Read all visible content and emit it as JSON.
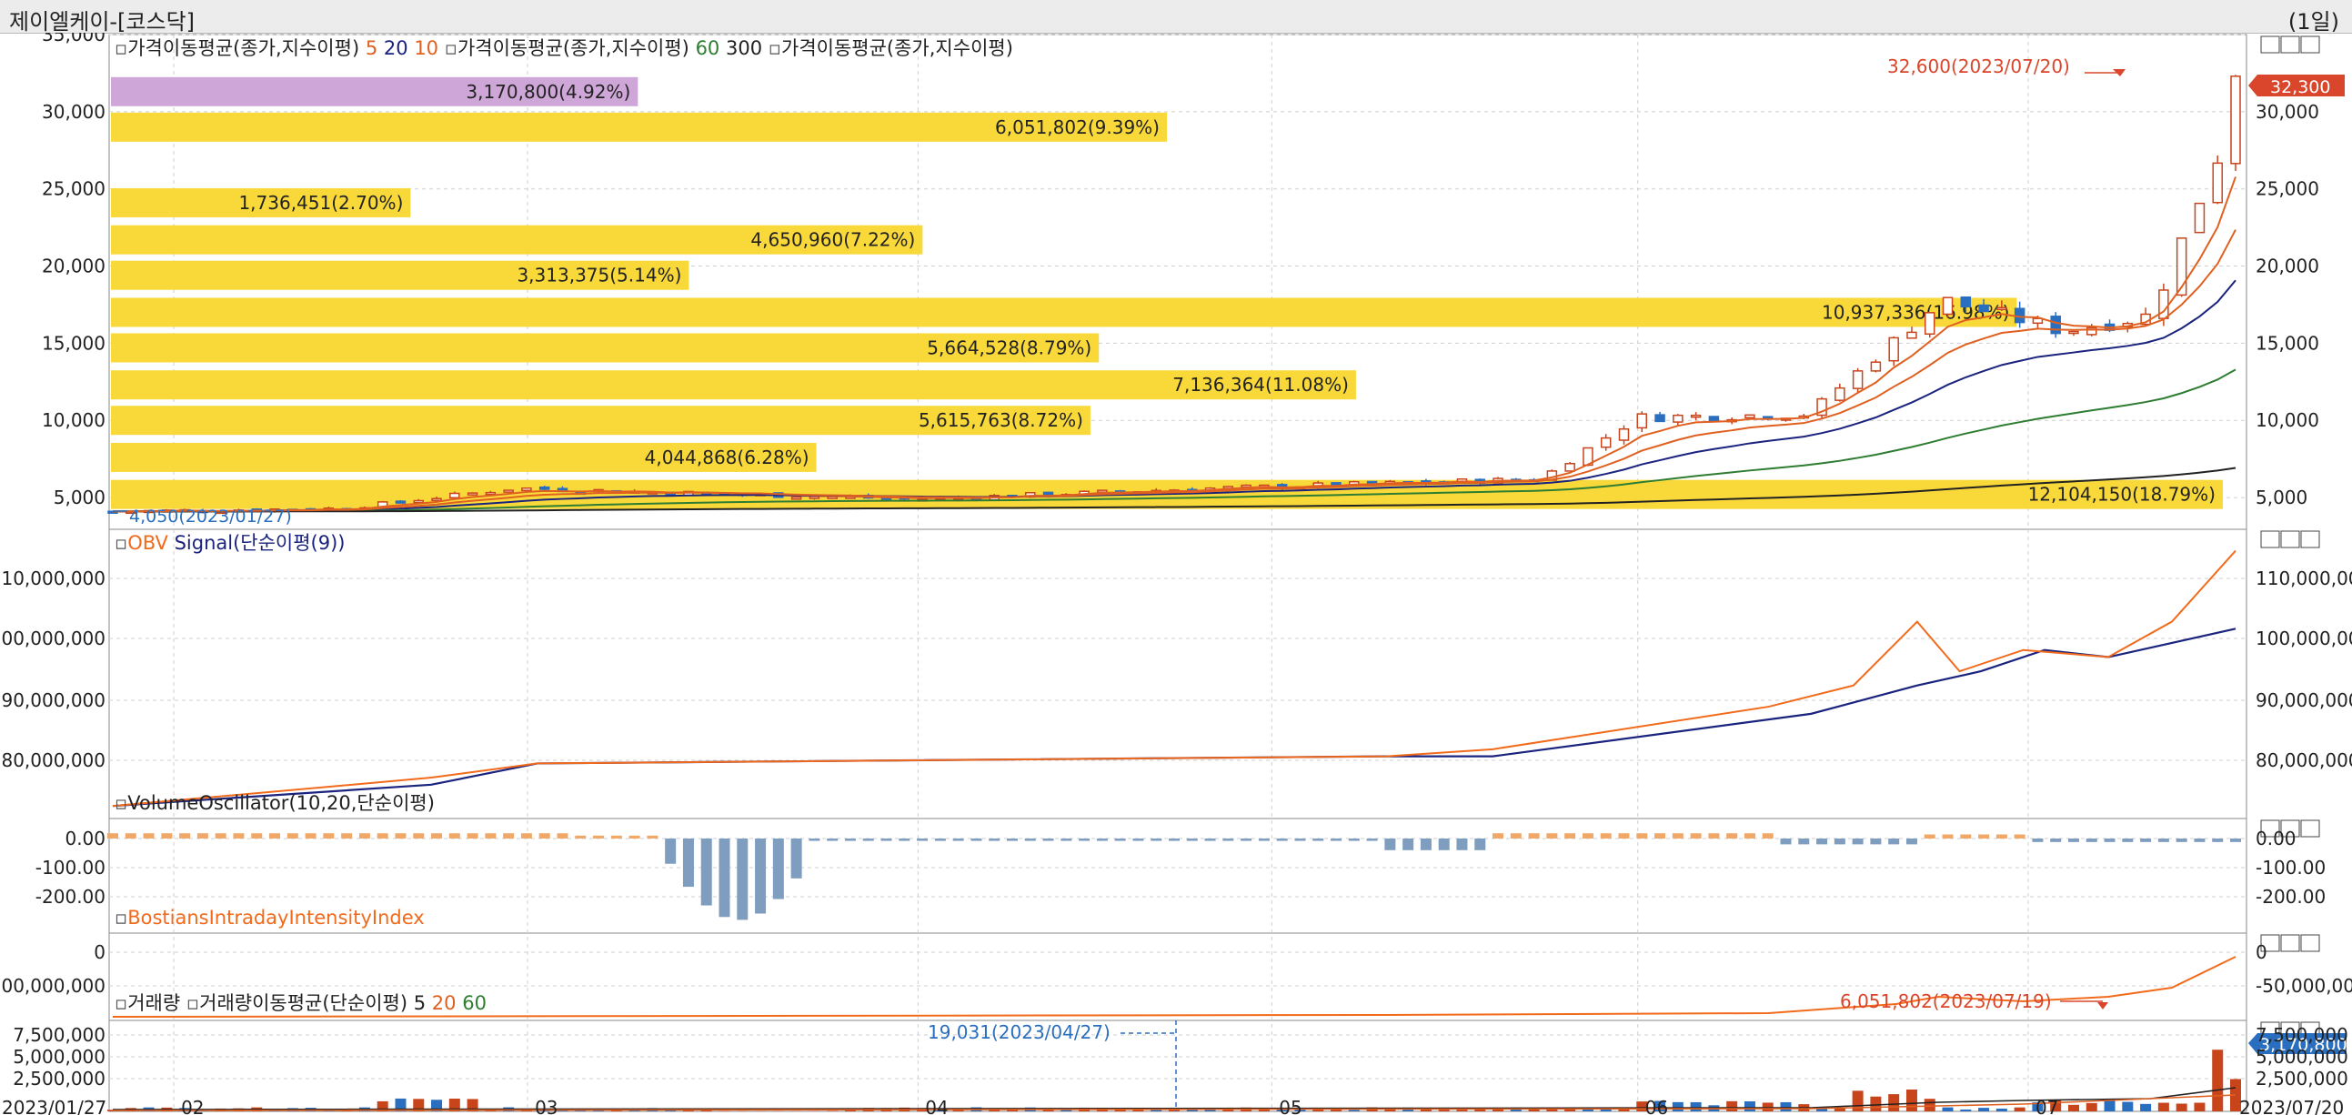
{
  "window": {
    "title": "제이엘케이-[코스닥]",
    "period": "(1일)"
  },
  "colors": {
    "up": "#c8441b",
    "down": "#2a6fbf",
    "ma5": "#e06020",
    "ma20": "#1a237e",
    "ma60": "#2e7d32",
    "ma300": "#222222",
    "vp_bar": "#f9d93a",
    "vp_current": "#cfa6d8",
    "obv": "#f26a1b",
    "signal": "#1a237e",
    "vo_pos": "#f0a868",
    "vo_neg": "#7f9dbf",
    "bii": "#f26a1b",
    "vol_up": "#c8441b",
    "vol_down": "#2a6fbf",
    "callout": "#d9462b",
    "grid": "#cfcfcf"
  },
  "price_panel": {
    "legend": {
      "ma_label_1": "가격이동평균(종가,지수이평)",
      "p5": "5",
      "p20": "20",
      "p10": "10",
      "ma_label_2": "가격이동평균(종가,지수이평)",
      "p60": "60",
      "p300": "300",
      "ma_label_3": "가격이동평균(종가,지수이평)"
    },
    "high_callout": "32,600(2023/07/20)",
    "low_callout": "4,050(2023/01/27)",
    "current_price": "32,300",
    "yaxis_left": [
      "35,000",
      "30,000",
      "25,000",
      "20,000",
      "15,000",
      "10,000",
      "5,000"
    ],
    "yaxis_right": [
      "30,000",
      "25,000",
      "20,000",
      "15,000",
      "10,000",
      "5,000"
    ],
    "volume_profile": [
      {
        "label": "3,170,800(4.92%)",
        "fraction": 0.248,
        "price_center": 31300,
        "current": true
      },
      {
        "label": "6,051,802(9.39%)",
        "fraction": 0.497,
        "price_center": 29000
      },
      {
        "label": "1,736,451(2.70%)",
        "fraction": 0.141,
        "price_center": 24100
      },
      {
        "label": "4,650,960(7.22%)",
        "fraction": 0.382,
        "price_center": 21700
      },
      {
        "label": "3,313,375(5.14%)",
        "fraction": 0.272,
        "price_center": 19400
      },
      {
        "label": "10,937,336(16.98%)",
        "fraction": 0.897,
        "price_center": 17000
      },
      {
        "label": "5,664,528(8.79%)",
        "fraction": 0.465,
        "price_center": 14700
      },
      {
        "label": "7,136,364(11.08%)",
        "fraction": 0.586,
        "price_center": 12300
      },
      {
        "label": "5,615,763(8.72%)",
        "fraction": 0.461,
        "price_center": 10000
      },
      {
        "label": "4,044,868(6.28%)",
        "fraction": 0.332,
        "price_center": 7600
      },
      {
        "label": "12,104,150(18.79%)",
        "fraction": 0.994,
        "price_center": 5200
      }
    ]
  },
  "obv_panel": {
    "legend": {
      "obv": "OBV",
      "signal": "Signal(단순이평(9))"
    },
    "yaxis_left": [
      "10,000,000",
      "00,000,000",
      "90,000,000",
      "80,000,000"
    ],
    "yaxis_right": [
      "110,000,000",
      "100,000,000",
      "90,000,000",
      "80,000,000"
    ]
  },
  "vo_panel": {
    "legend": "VolumeOscillator(10,20,단순이평)",
    "yaxis_left": [
      "0.00",
      "-100.00",
      "-200.00"
    ],
    "yaxis_right": [
      "0.00",
      "-100.00",
      "-200.00"
    ]
  },
  "bii_panel": {
    "legend": "BostiansIntradayIntensityIndex",
    "yaxis_left": [
      "0",
      "00,000,000"
    ],
    "yaxis_right": [
      "0",
      "-50,000,000"
    ]
  },
  "vol_panel": {
    "legend": {
      "vol": "거래량",
      "ma": "거래량이동평균(단순이평)",
      "p5": "5",
      "p20": "20",
      "p60": "60"
    },
    "high_callout": "6,051,802(2023/07/19)",
    "low_callout": "19,031(2023/04/27)",
    "current_volume": "3,170,800",
    "yaxis_left": [
      "7,500,000",
      "5,000,000",
      "2,500,000"
    ],
    "yaxis_right": [
      "7,500,000",
      "5,000,000",
      "2,500,000"
    ]
  },
  "xaxis": {
    "start": "2023/01/27",
    "end": "2023/07/20",
    "months": [
      "02",
      "03",
      "04",
      "05",
      "06",
      "07"
    ]
  },
  "chart_data": {
    "type": "candlestick",
    "x_range": [
      "2023/01/27",
      "2023/07/20"
    ],
    "price_ylim": [
      3000,
      35000
    ],
    "keypoints": [
      {
        "date": "2023/01/27",
        "close": 4100
      },
      {
        "date": "2023/02/15",
        "close": 4300
      },
      {
        "date": "2023/03/01",
        "close": 5600
      },
      {
        "date": "2023/04/03",
        "close": 4900
      },
      {
        "date": "2023/04/27",
        "close": 5600
      },
      {
        "date": "2023/05/24",
        "close": 6200
      },
      {
        "date": "2023/06/01",
        "close": 10200
      },
      {
        "date": "2023/06/15",
        "close": 10400
      },
      {
        "date": "2023/06/26",
        "close": 17800
      },
      {
        "date": "2023/07/06",
        "close": 15800
      },
      {
        "date": "2023/07/13",
        "close": 16800
      },
      {
        "date": "2023/07/19",
        "close": 28000
      },
      {
        "date": "2023/07/20",
        "close": 32300
      }
    ],
    "series": [
      {
        "name": "OBV",
        "points": [
          [
            0,
            79
          ],
          [
            0.15,
            83
          ],
          [
            0.2,
            85
          ],
          [
            0.6,
            86
          ],
          [
            0.65,
            87
          ],
          [
            0.78,
            93
          ],
          [
            0.82,
            96
          ],
          [
            0.85,
            105
          ],
          [
            0.87,
            98
          ],
          [
            0.9,
            101
          ],
          [
            0.94,
            100
          ],
          [
            0.97,
            105
          ],
          [
            1.0,
            115
          ]
        ]
      },
      {
        "name": "Signal",
        "points": [
          [
            0,
            79
          ],
          [
            0.15,
            82
          ],
          [
            0.2,
            85
          ],
          [
            0.6,
            86
          ],
          [
            0.65,
            86
          ],
          [
            0.8,
            92
          ],
          [
            0.85,
            96
          ],
          [
            0.88,
            98
          ],
          [
            0.91,
            101
          ],
          [
            0.94,
            100
          ],
          [
            0.97,
            102
          ],
          [
            1.0,
            104
          ]
        ]
      }
    ]
  }
}
